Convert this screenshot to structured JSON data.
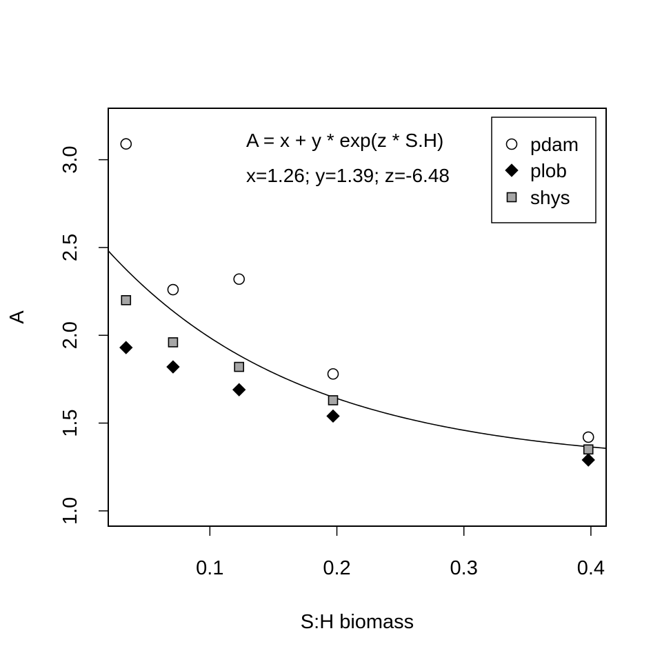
{
  "chart_data": {
    "type": "scatter",
    "xlabel": "S:H biomass",
    "ylabel": "A",
    "xlim": [
      0.02,
      0.412
    ],
    "ylim": [
      0.913,
      3.293
    ],
    "x_ticks": [
      0.1,
      0.2,
      0.3,
      0.4
    ],
    "y_ticks": [
      1.0,
      1.5,
      2.0,
      2.5,
      3.0
    ],
    "x_tick_labels": [
      "0.1",
      "0.2",
      "0.3",
      "0.4"
    ],
    "y_tick_labels": [
      "1.0",
      "1.5",
      "2.0",
      "2.5",
      "3.0"
    ],
    "grid": false,
    "legend_position": "top-right",
    "annotations": [
      "A = x + y * exp(z * S.H)",
      "x=1.26; y=1.39; z=-6.48"
    ],
    "fit": {
      "x": 1.26,
      "y": 1.39,
      "z": -6.48
    },
    "series": [
      {
        "name": "pdam",
        "marker": "open-circle",
        "color": "#000000",
        "x": [
          0.034,
          0.071,
          0.123,
          0.197,
          0.398
        ],
        "y": [
          3.09,
          2.26,
          2.32,
          1.78,
          1.42
        ]
      },
      {
        "name": "plob",
        "marker": "filled-diamond",
        "color": "#000000",
        "x": [
          0.034,
          0.071,
          0.123,
          0.197,
          0.398
        ],
        "y": [
          1.93,
          1.82,
          1.69,
          1.54,
          1.29
        ]
      },
      {
        "name": "shys",
        "marker": "filled-square",
        "color": "#a6a6a6",
        "x": [
          0.034,
          0.071,
          0.123,
          0.197,
          0.398
        ],
        "y": [
          2.2,
          1.96,
          1.82,
          1.63,
          1.35
        ]
      }
    ]
  }
}
